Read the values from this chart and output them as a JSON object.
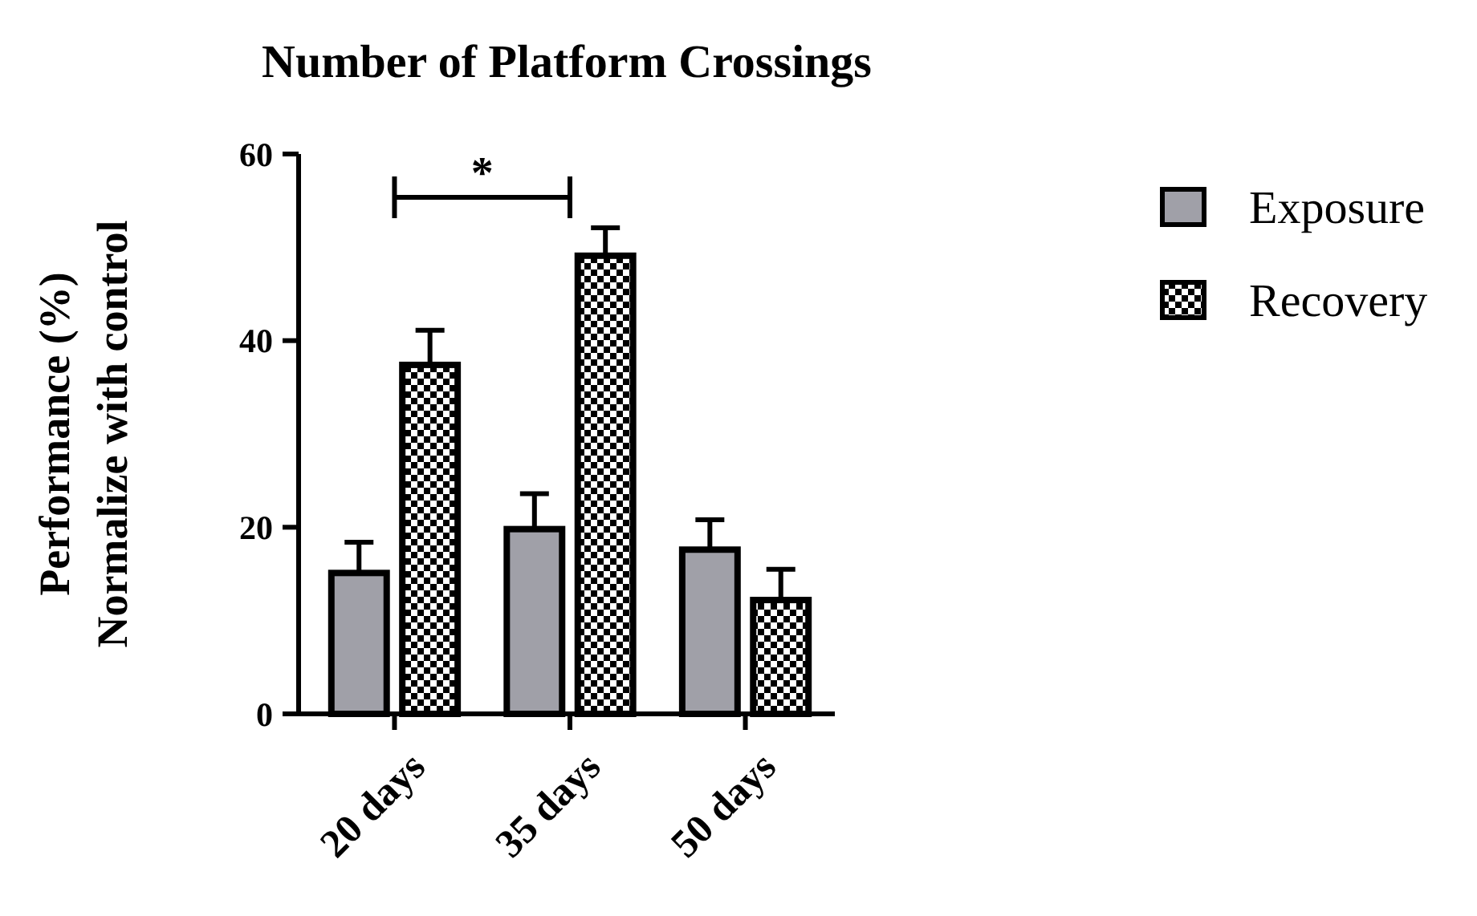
{
  "chart_data": {
    "type": "bar",
    "title": "Number of Platform Crossings",
    "ylabel": "Performance (%)\nNormalize with control",
    "categories": [
      "20 days",
      "35 days",
      "50 days"
    ],
    "series": [
      {
        "name": "Exposure",
        "color": "#a0a0a8",
        "values": [
          15.1,
          19.8,
          17.6
        ],
        "errors": [
          [
            15.1,
            18.4
          ],
          [
            19.8,
            23.6
          ],
          [
            17.6,
            20.8
          ]
        ]
      },
      {
        "name": "Recovery",
        "color": "#000000",
        "values": [
          37.4,
          49.1,
          12.2
        ],
        "errors": [
          [
            37.4,
            41.1
          ],
          [
            49.1,
            52.1
          ],
          [
            12.2,
            15.5
          ]
        ]
      }
    ],
    "ylim": [
      0,
      60
    ],
    "yticks": [
      0,
      20,
      40,
      60
    ],
    "legend": "top right",
    "annotations": [
      "*"
    ]
  }
}
